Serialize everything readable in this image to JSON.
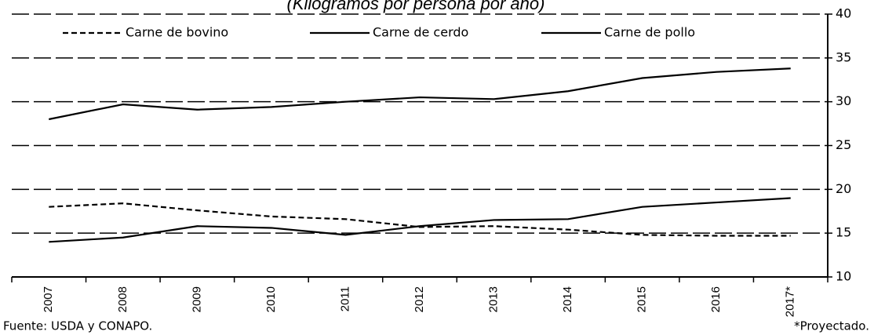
{
  "chart_data": {
    "type": "line",
    "title": "(Kilogramos por persona por año)",
    "categories": [
      "2007",
      "2008",
      "2009",
      "2010",
      "2011",
      "2012",
      "2013",
      "2014",
      "2015",
      "2016",
      "2017*"
    ],
    "series": [
      {
        "name": "Carne de bovino",
        "color": "#000000",
        "dash": true,
        "values": [
          18,
          18.4,
          17.6,
          16.9,
          16.6,
          15.7,
          15.8,
          15.4,
          14.8,
          14.7,
          14.7
        ]
      },
      {
        "name": "Carne de cerdo",
        "color": "#000000",
        "dash": false,
        "values": [
          14,
          14.5,
          15.8,
          15.6,
          14.8,
          15.8,
          16.5,
          16.6,
          18,
          18.5,
          19
        ]
      },
      {
        "name": "Carne de pollo",
        "color": "#000000",
        "dash": false,
        "values": [
          28,
          29.7,
          29.1,
          29.4,
          30,
          30.5,
          30.3,
          31.2,
          32.7,
          33.4,
          33.8
        ]
      }
    ],
    "ylim": [
      10,
      40
    ],
    "yticks": [
      10,
      15,
      20,
      25,
      30,
      35,
      40
    ],
    "grid": true,
    "y_axis_side": "right",
    "legend": "top",
    "source": "Fuente: USDA y CONAPO.",
    "note": "*Proyectado."
  }
}
